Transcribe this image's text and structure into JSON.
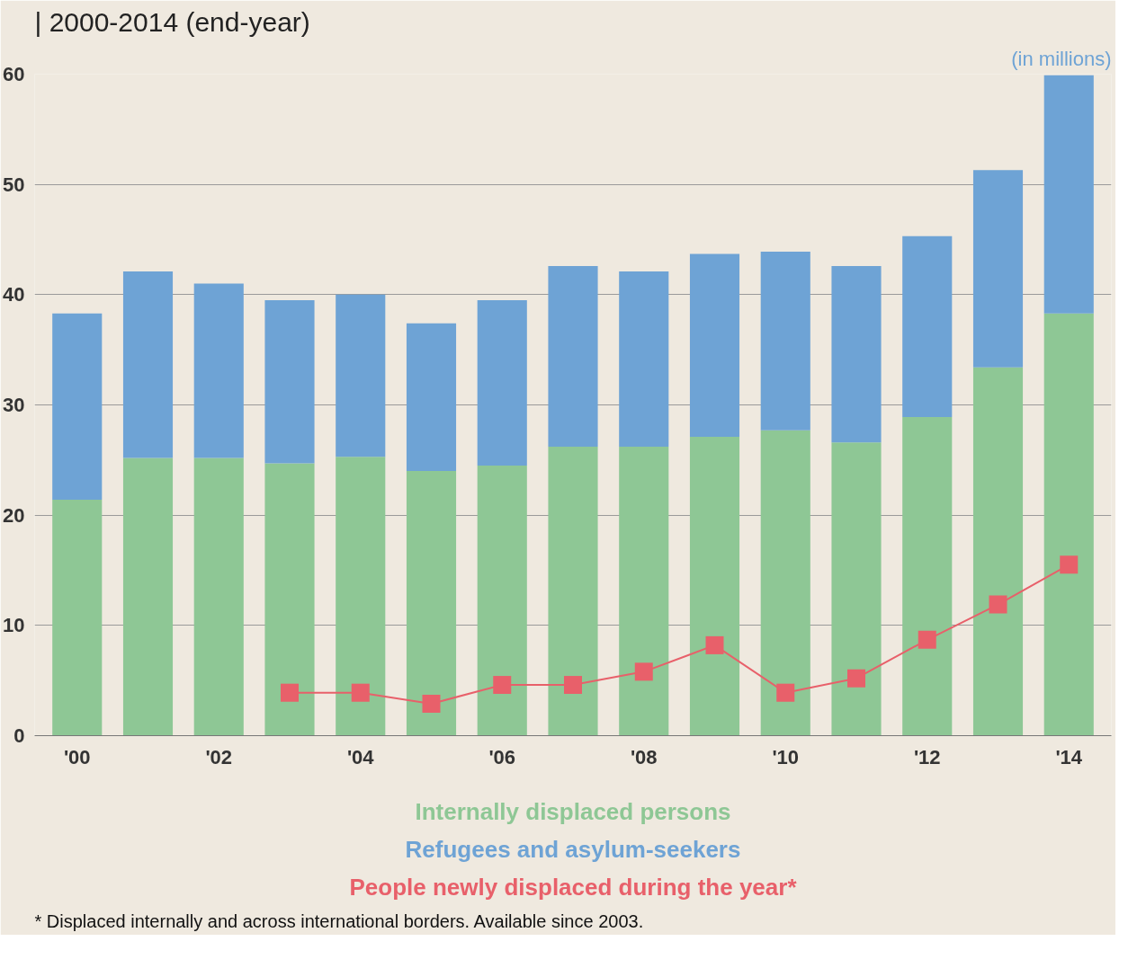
{
  "chart_data": {
    "type": "bar",
    "stacked": true,
    "title": "| 2000-2014 (end-year)",
    "categories": [
      "'00",
      null,
      "'02",
      null,
      "'04",
      null,
      "'06",
      null,
      "'08",
      null,
      "'10",
      null,
      "'12",
      null,
      "'14"
    ],
    "series": [
      {
        "name": "Internally displaced persons",
        "color": "#8ec795",
        "values": [
          21.4,
          25.2,
          25.2,
          24.7,
          25.3,
          24.0,
          24.5,
          26.2,
          26.2,
          27.1,
          27.7,
          26.6,
          28.9,
          33.4,
          38.3
        ]
      },
      {
        "name": "Refugees and asylum-seekers",
        "color": "#6ea3d5",
        "values": [
          16.9,
          16.9,
          15.8,
          14.8,
          14.7,
          13.4,
          15.0,
          16.4,
          15.9,
          16.6,
          16.2,
          16.0,
          16.4,
          17.9,
          21.6
        ]
      },
      {
        "name": "People newly displaced during the year*",
        "color": "#e8606a",
        "type": "line",
        "marker": "square",
        "values": [
          null,
          null,
          null,
          3.9,
          3.9,
          2.9,
          4.6,
          4.6,
          5.8,
          8.2,
          3.9,
          5.2,
          8.7,
          11.9,
          15.5
        ]
      }
    ],
    "ylim": [
      0,
      60
    ],
    "yticks": [
      0,
      10,
      20,
      30,
      40,
      50,
      60
    ],
    "grid": "y",
    "legend": "bottom",
    "annotations": [
      "(in millions)",
      "* Displaced internally and across international borders. Available since 2003."
    ]
  }
}
